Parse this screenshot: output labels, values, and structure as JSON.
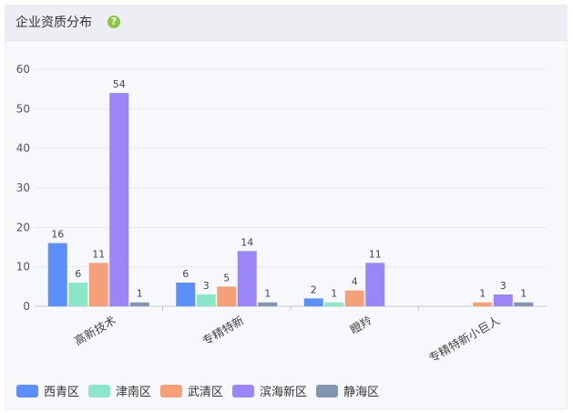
{
  "header": {
    "title": "企业资质分布",
    "help_icon": "question-circle-icon",
    "help_glyph": "?"
  },
  "chart_data": {
    "type": "bar",
    "categories": [
      "高新技术",
      "专精特新",
      "瞪羚",
      "专精特新小巨人"
    ],
    "series": [
      {
        "name": "西青区",
        "color": "#5b8ff9",
        "values": [
          16,
          6,
          2,
          null
        ]
      },
      {
        "name": "津南区",
        "color": "#8ce6c9",
        "values": [
          6,
          3,
          1,
          null
        ]
      },
      {
        "name": "武清区",
        "color": "#f6a07a",
        "values": [
          11,
          5,
          4,
          1
        ]
      },
      {
        "name": "滨海新区",
        "color": "#9a86f7",
        "values": [
          54,
          14,
          11,
          3
        ]
      },
      {
        "name": "静海区",
        "color": "#8497b0",
        "values": [
          1,
          1,
          null,
          1
        ]
      }
    ],
    "ylim": [
      0,
      60
    ],
    "yticks": [
      0,
      10,
      20,
      30,
      40,
      50,
      60
    ],
    "grid": true,
    "legend_position": "bottom-left",
    "xlabel": "",
    "ylabel": ""
  }
}
